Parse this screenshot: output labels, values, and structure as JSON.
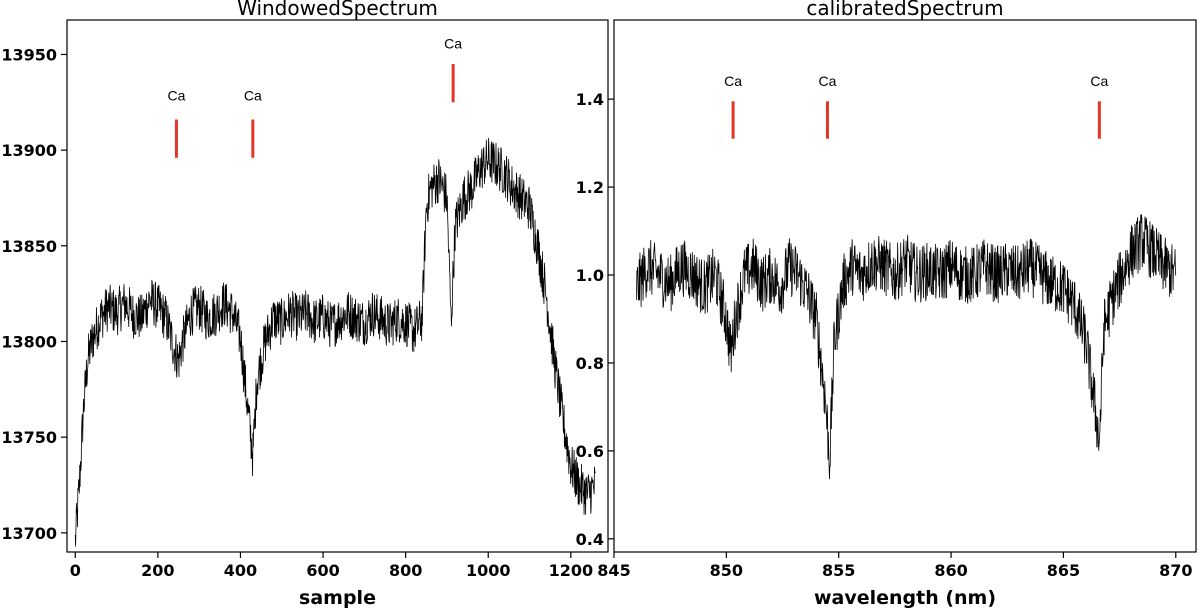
{
  "chart_data": [
    {
      "type": "line",
      "title": "WindowedSpectrum",
      "xlabel": "sample",
      "ylabel": "",
      "xlim": [
        -20,
        1290
      ],
      "ylim": [
        13690,
        13968
      ],
      "xticks": [
        0,
        200,
        400,
        600,
        800,
        1000,
        1200
      ],
      "yticks": [
        13700,
        13750,
        13800,
        13850,
        13900,
        13950
      ],
      "grid": false,
      "line_color": "#000000",
      "marker_color": "#e53529",
      "series": [
        {
          "x": [
            0,
            10,
            20,
            30,
            40,
            60,
            80,
            100,
            120,
            140,
            160,
            180,
            200,
            220,
            240,
            250,
            260,
            280,
            300,
            320,
            340,
            360,
            380,
            400,
            420,
            430,
            440,
            460,
            480,
            500,
            520,
            540,
            560,
            580,
            600,
            620,
            640,
            660,
            680,
            700,
            720,
            740,
            760,
            780,
            800,
            820,
            840,
            850,
            860,
            880,
            900,
            910,
            920,
            940,
            960,
            980,
            1000,
            1020,
            1040,
            1060,
            1080,
            1100,
            1120,
            1140,
            1160,
            1180,
            1200,
            1220,
            1240,
            1260
          ],
          "y": [
            13695,
            13725,
            13765,
            13790,
            13800,
            13812,
            13818,
            13815,
            13820,
            13814,
            13812,
            13822,
            13818,
            13812,
            13796,
            13790,
            13800,
            13815,
            13818,
            13812,
            13815,
            13820,
            13815,
            13802,
            13760,
            13740,
            13780,
            13800,
            13812,
            13810,
            13815,
            13812,
            13815,
            13810,
            13813,
            13808,
            13812,
            13815,
            13812,
            13810,
            13815,
            13812,
            13808,
            13812,
            13810,
            13805,
            13812,
            13870,
            13880,
            13885,
            13875,
            13810,
            13860,
            13875,
            13880,
            13890,
            13895,
            13892,
            13888,
            13880,
            13875,
            13870,
            13850,
            13825,
            13790,
            13760,
            13735,
            13725,
            13720,
            13725
          ]
        }
      ],
      "annotations": [
        {
          "text": "Ca",
          "x": 245,
          "marker_y": [
            13896,
            13916
          ],
          "label_y": 13926
        },
        {
          "text": "Ca",
          "x": 430,
          "marker_y": [
            13896,
            13916
          ],
          "label_y": 13926
        },
        {
          "text": "Ca",
          "x": 915,
          "marker_y": [
            13925,
            13945
          ],
          "label_y": 13953
        }
      ]
    },
    {
      "type": "line",
      "title": "calibratedSpectrum",
      "xlabel": "wavelength (nm)",
      "ylabel": "",
      "xlim": [
        845.0,
        870.9
      ],
      "ylim": [
        0.37,
        1.58
      ],
      "xticks": [
        845,
        850,
        855,
        860,
        865,
        870
      ],
      "yticks": [
        0.4,
        0.6,
        0.8,
        1.0,
        1.2,
        1.4
      ],
      "grid": false,
      "line_color": "#000000",
      "marker_color": "#e53529",
      "series": [
        {
          "x": [
            846.0,
            846.5,
            847.0,
            847.5,
            848.0,
            848.5,
            849.0,
            849.5,
            850.0,
            850.2,
            850.4,
            850.8,
            851.2,
            851.6,
            852.0,
            852.4,
            852.8,
            853.2,
            853.6,
            854.0,
            854.4,
            854.6,
            854.8,
            855.2,
            855.6,
            856.0,
            856.5,
            857.0,
            857.5,
            858.0,
            858.5,
            859.0,
            859.5,
            860.0,
            860.5,
            861.0,
            861.5,
            862.0,
            862.5,
            863.0,
            863.5,
            864.0,
            864.5,
            865.0,
            865.5,
            866.0,
            866.4,
            866.6,
            866.8,
            867.2,
            867.6,
            868.0,
            868.5,
            869.0,
            869.5,
            870.0
          ],
          "y": [
            0.97,
            1.02,
            1.0,
            0.98,
            1.02,
            1.0,
            0.97,
            1.0,
            0.9,
            0.82,
            0.9,
            1.0,
            1.02,
            0.98,
            1.0,
            0.97,
            1.02,
            1.0,
            0.96,
            0.9,
            0.72,
            0.58,
            0.85,
            0.98,
            1.02,
            1.0,
            1.03,
            1.02,
            1.0,
            1.03,
            1.0,
            1.01,
            1.0,
            1.02,
            1.0,
            1.0,
            1.02,
            1.0,
            1.01,
            1.0,
            1.02,
            1.0,
            0.98,
            0.97,
            0.93,
            0.85,
            0.7,
            0.62,
            0.88,
            0.95,
            1.0,
            1.05,
            1.08,
            1.05,
            1.02,
            1.0
          ]
        }
      ],
      "annotations": [
        {
          "text": "Ca",
          "x": 850.3,
          "marker_y": [
            1.31,
            1.395
          ],
          "label_y": 1.43
        },
        {
          "text": "Ca",
          "x": 854.5,
          "marker_y": [
            1.31,
            1.395
          ],
          "label_y": 1.43
        },
        {
          "text": "Ca",
          "x": 866.6,
          "marker_y": [
            1.31,
            1.395
          ],
          "label_y": 1.43
        }
      ]
    }
  ]
}
